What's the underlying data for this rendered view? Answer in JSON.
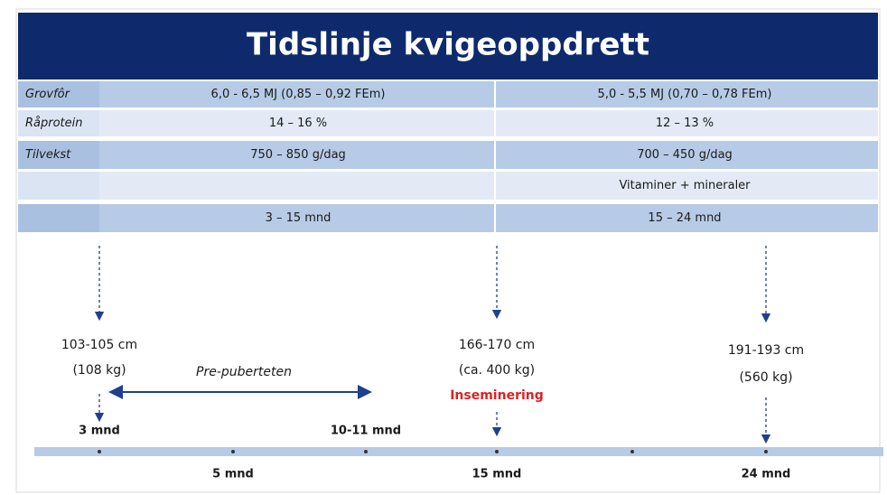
{
  "header": {
    "title": "Tidslinje kvigeoppdrett"
  },
  "table": {
    "rows": [
      {
        "label": "Grovfôr",
        "col1": "6,0 - 6,5 MJ (0,85 – 0,92 FEm)",
        "col2": "5,0 - 5,5 MJ (0,70 – 0,78 FEm)"
      },
      {
        "label": "Råprotein",
        "col1": "14 – 16 %",
        "col2": "12 – 13 %"
      },
      {
        "label": "Tilvekst",
        "col1": "750 – 850 g/dag",
        "col2": "700 – 450 g/dag"
      },
      {
        "col2": "Vitaminer + mineraler"
      },
      {
        "col1": "3 – 15 mnd",
        "col2": "15 – 24 mnd"
      }
    ]
  },
  "timeline": {
    "start": {
      "height": "103-105 cm",
      "weight": "(108 kg)",
      "age": "3 mnd"
    },
    "middle": {
      "height": "166-170 cm",
      "weight": "(ca. 400 kg)",
      "event": "Inseminering",
      "age": "15 mnd"
    },
    "end": {
      "height": "191-193 cm",
      "weight": "(560 kg)",
      "age": "24 mnd"
    },
    "phase": {
      "label": "Pre-puberteten",
      "end_age": "10-11 mnd"
    },
    "other_ages": [
      "5 mnd"
    ]
  }
}
